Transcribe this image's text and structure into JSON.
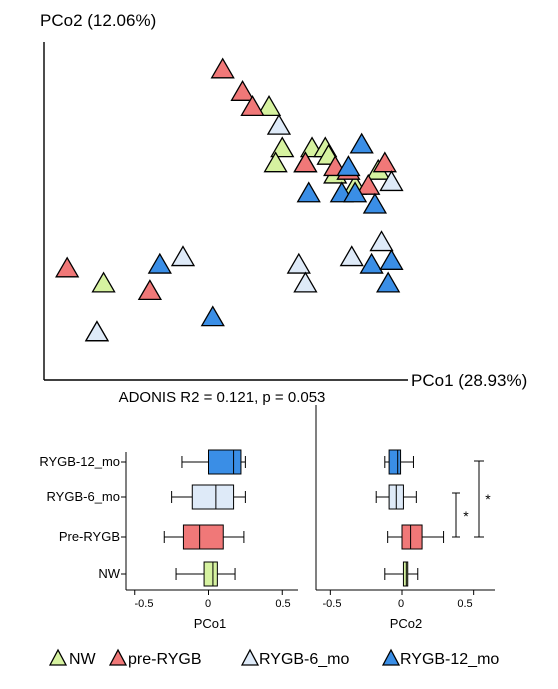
{
  "colors": {
    "NW": "#d6f2a0",
    "pre-RYGB": "#f07878",
    "RYGB-6_mo": "#deeaf8",
    "RYGB-12_mo": "#3a8ee6"
  },
  "chart_data": [
    {
      "type": "scatter",
      "marker": "triangle",
      "title": "",
      "xlabel": "PCo1 (28.93%)",
      "ylabel": "PCo2 (12.06%)",
      "annotation": "ADONIS R2 = 0.121, p = 0.053",
      "xlim": [
        -0.55,
        0.55
      ],
      "ylim": [
        -0.45,
        0.45
      ],
      "grid": false,
      "series": [
        {
          "name": "NW",
          "points": [
            [
              0.13,
              0.28
            ],
            [
              0.17,
              0.17
            ],
            [
              0.15,
              0.13
            ],
            [
              0.26,
              0.17
            ],
            [
              0.24,
              0.13
            ],
            [
              0.3,
              0.17
            ],
            [
              0.31,
              0.15
            ],
            [
              0.33,
              0.1
            ],
            [
              0.39,
              0.07
            ],
            [
              0.46,
              0.11
            ],
            [
              -0.37,
              -0.19
            ],
            [
              -0.39,
              -0.32
            ]
          ]
        },
        {
          "name": "pre-RYGB",
          "points": [
            [
              -0.01,
              0.38
            ],
            [
              0.05,
              0.32
            ],
            [
              0.08,
              0.28
            ],
            [
              0.24,
              0.13
            ],
            [
              0.33,
              0.12
            ],
            [
              0.37,
              0.11
            ],
            [
              0.43,
              0.07
            ],
            [
              0.48,
              0.13
            ],
            [
              -0.48,
              -0.15
            ],
            [
              -0.23,
              -0.21
            ]
          ]
        },
        {
          "name": "RYGB-6_mo",
          "points": [
            [
              0.16,
              0.23
            ],
            [
              -0.13,
              -0.12
            ],
            [
              0.22,
              -0.14
            ],
            [
              0.24,
              -0.19
            ],
            [
              0.38,
              -0.12
            ],
            [
              0.47,
              -0.08
            ],
            [
              0.5,
              0.08
            ],
            [
              -0.39,
              -0.32
            ]
          ]
        },
        {
          "name": "RYGB-12_mo",
          "points": [
            [
              0.41,
              0.18
            ],
            [
              0.37,
              0.12
            ],
            [
              0.25,
              0.05
            ],
            [
              0.35,
              0.05
            ],
            [
              0.39,
              0.05
            ],
            [
              0.45,
              0.02
            ],
            [
              0.44,
              -0.14
            ],
            [
              0.49,
              -0.19
            ],
            [
              0.5,
              -0.13
            ],
            [
              -0.2,
              -0.14
            ],
            [
              -0.04,
              -0.28
            ]
          ]
        }
      ]
    },
    {
      "type": "boxplot",
      "orientation": "horizontal",
      "xlabel": "PCo1",
      "xlim": [
        -0.6,
        0.6
      ],
      "xticks": [
        "-0.5",
        "0",
        "0.5"
      ],
      "tick_values": [
        -0.5,
        0,
        0.5
      ],
      "categories": [
        "RYGB-12_mo",
        "RYGB-6_mo",
        "Pre-RYGB",
        "NW"
      ],
      "series": [
        {
          "name": "RYGB-12_mo",
          "whisker_low": -0.18,
          "q1": 0.0,
          "median": 0.17,
          "q3": 0.22,
          "whisker_high": 0.25
        },
        {
          "name": "RYGB-6_mo",
          "whisker_low": -0.25,
          "q1": -0.11,
          "median": 0.05,
          "q3": 0.17,
          "whisker_high": 0.25
        },
        {
          "name": "pre-RYGB",
          "whisker_low": -0.3,
          "q1": -0.17,
          "median": -0.06,
          "q3": 0.1,
          "whisker_high": 0.24
        },
        {
          "name": "NW",
          "whisker_low": -0.22,
          "q1": -0.03,
          "median": 0.03,
          "q3": 0.06,
          "whisker_high": 0.18
        }
      ]
    },
    {
      "type": "boxplot",
      "orientation": "horizontal",
      "xlabel": "PCo2",
      "xlim": [
        -0.6,
        0.6
      ],
      "xticks": [
        "-0.5",
        "0",
        "0.5"
      ],
      "tick_values": [
        -0.5,
        0,
        0.5
      ],
      "categories": [
        "RYGB-12_mo",
        "RYGB-6_mo",
        "Pre-RYGB",
        "NW"
      ],
      "series": [
        {
          "name": "RYGB-12_mo",
          "whisker_low": -0.12,
          "q1": -0.09,
          "median": -0.03,
          "q3": -0.01,
          "whisker_high": 0.08
        },
        {
          "name": "RYGB-6_mo",
          "whisker_low": -0.18,
          "q1": -0.09,
          "median": -0.04,
          "q3": 0.01,
          "whisker_high": 0.1
        },
        {
          "name": "pre-RYGB",
          "whisker_low": -0.1,
          "q1": 0.0,
          "median": 0.06,
          "q3": 0.14,
          "whisker_high": 0.29
        },
        {
          "name": "NW",
          "whisker_low": -0.12,
          "q1": 0.01,
          "median": 0.03,
          "q3": 0.04,
          "whisker_high": 0.11
        }
      ],
      "significance": [
        {
          "label": "*",
          "from": "RYGB-6_mo",
          "to": "Pre-RYGB"
        },
        {
          "label": "*",
          "from": "RYGB-12_mo",
          "to": "Pre-RYGB"
        }
      ]
    }
  ],
  "legend": {
    "placement": "bottom",
    "items": [
      {
        "label": "NW",
        "group": "NW"
      },
      {
        "label": "pre-RYGB",
        "group": "pre-RYGB"
      },
      {
        "label": "RYGB-6_mo",
        "group": "RYGB-6_mo"
      },
      {
        "label": "RYGB-12_mo",
        "group": "RYGB-12_mo"
      }
    ]
  }
}
